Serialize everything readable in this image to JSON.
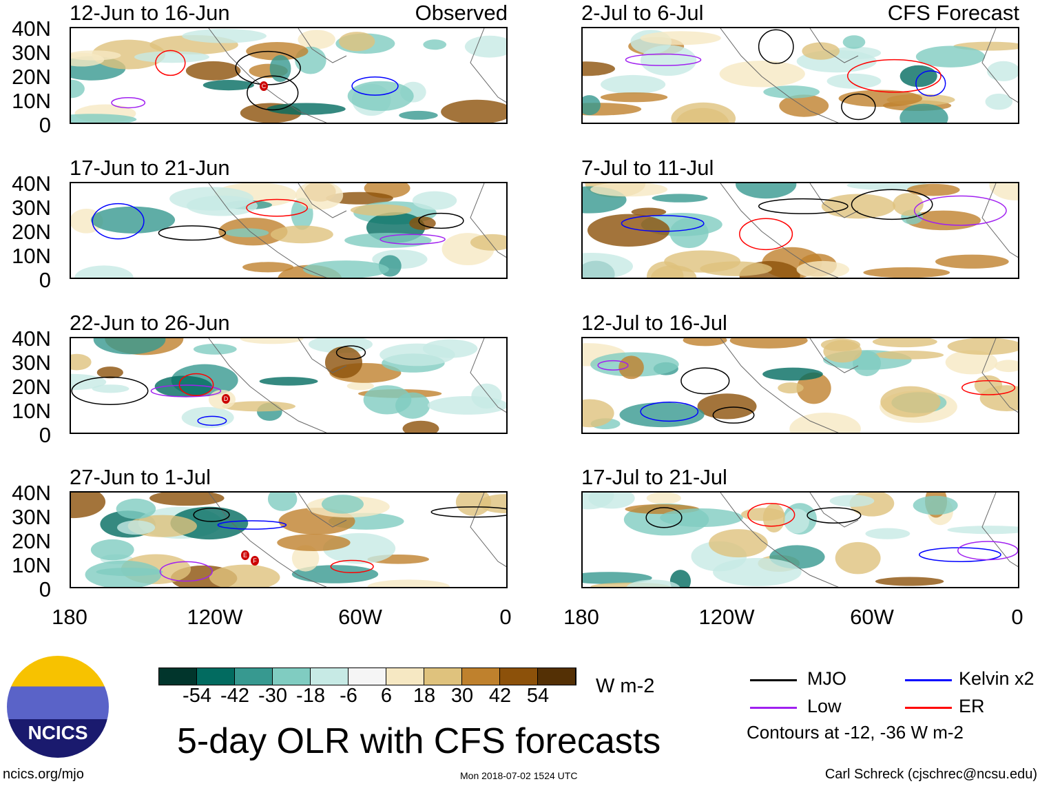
{
  "panels_left": [
    {
      "title": "12-Jun to 16-Jun",
      "right_label": "Observed"
    },
    {
      "title": "17-Jun to 21-Jun"
    },
    {
      "title": "22-Jun to 26-Jun"
    },
    {
      "title": "27-Jun to 1-Jul"
    }
  ],
  "panels_right": [
    {
      "title": "2-Jul to 6-Jul",
      "right_label": "CFS Forecast"
    },
    {
      "title": "7-Jul to 11-Jul"
    },
    {
      "title": "12-Jul to 16-Jul"
    },
    {
      "title": "17-Jul to 21-Jul"
    }
  ],
  "lat_labels": [
    "40N",
    "30N",
    "20N",
    "10N",
    "0"
  ],
  "lon_labels": [
    "180",
    "120W",
    "60W",
    "0"
  ],
  "storm_markers": [
    "C",
    "D",
    "E",
    "F"
  ],
  "colorbar": {
    "colors": [
      "#01352c",
      "#026b60",
      "#379990",
      "#80ccc1",
      "#c7eae5",
      "#f5f5f5",
      "#f6e8c3",
      "#dfc27d",
      "#bf812d",
      "#8c510a",
      "#543005"
    ],
    "labels": [
      "-54",
      "-42",
      "-30",
      "-18",
      "-6",
      "6",
      "18",
      "30",
      "42",
      "54"
    ],
    "units": "W m-2"
  },
  "legend": {
    "items": [
      {
        "label": "MJO",
        "color": "#000000"
      },
      {
        "label": "Kelvin x2",
        "color": "#0000ff"
      },
      {
        "label": "Low",
        "color": "#a020f0"
      },
      {
        "label": "ER",
        "color": "#ff0000"
      }
    ],
    "note": "Contours at -12, -36 W m-2"
  },
  "logo_text": "NCICS",
  "title": "5-day OLR with CFS forecasts",
  "footer": {
    "left": "ncics.org/mjo",
    "center": "Mon 2018-07-02 1524 UTC",
    "right": "Carl Schreck (cjschrec@ncsu.edu)"
  }
}
